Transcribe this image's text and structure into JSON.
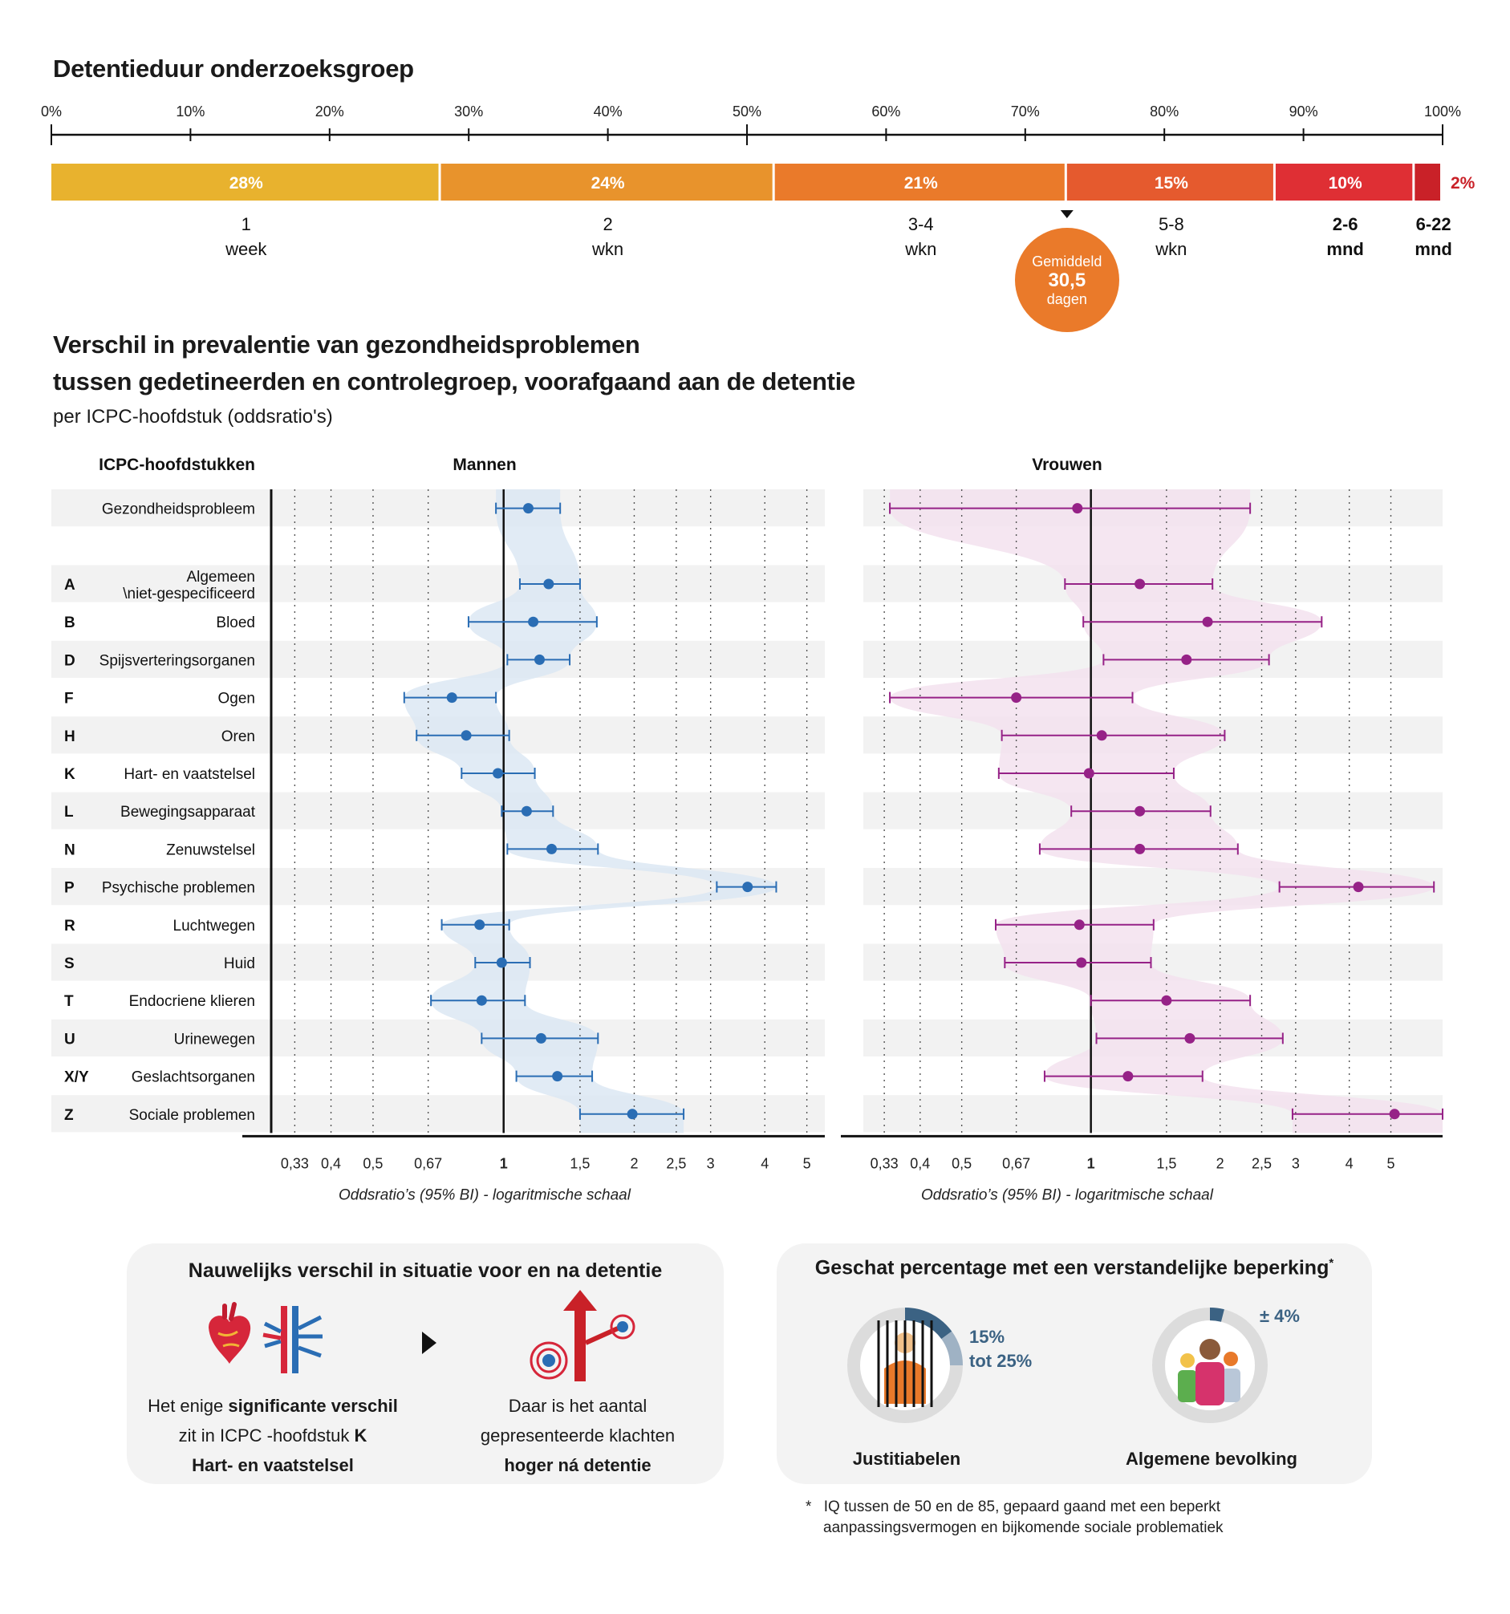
{
  "detention": {
    "title": "Detentieduur onderzoeksgroep",
    "scale_ticks": [
      "0%",
      "10%",
      "20%",
      "30%",
      "40%",
      "50%",
      "60%",
      "70%",
      "80%",
      "90%",
      "100%"
    ],
    "segments": [
      {
        "value": 28,
        "label": "28%",
        "line1": "1",
        "line2": "week",
        "color": "#e8b22e",
        "bold": false
      },
      {
        "value": 24,
        "label": "24%",
        "line1": "2",
        "line2": "wkn",
        "color": "#e8932c",
        "bold": false
      },
      {
        "value": 21,
        "label": "21%",
        "line1": "3-4",
        "line2": "wkn",
        "color": "#ea7a2a",
        "bold": false
      },
      {
        "value": 15,
        "label": "15%",
        "line1": "5-8",
        "line2": "wkn",
        "color": "#e55a2e",
        "bold": false
      },
      {
        "value": 10,
        "label": "10%",
        "line1": "2-6",
        "line2": "mnd",
        "color": "#df2f34",
        "bold": true
      },
      {
        "value": 2,
        "label": "2%",
        "line1": "6-22",
        "line2": "mnd",
        "color": "#c92128",
        "bold": true
      }
    ],
    "average": {
      "position_pct": 73,
      "line1": "Gemiddeld",
      "value": "30,5",
      "line3": "dagen"
    }
  },
  "forest": {
    "title_line1": "Verschil in prevalentie van gezondheidsproblemen",
    "title_line2": "tussen gedetineerden en controlegroep, voorafgaand aan de detentie",
    "subtitle": "per ICPC-hoofdstuk (oddsratio's)",
    "col_header": "ICPC-hoofdstukken"
  },
  "chart_data": [
    {
      "type": "forest",
      "name": "Mannen",
      "xlabel": "Oddsratio’s (95% BI) - logaritmische schaal",
      "scale": "log",
      "xlim": [
        0.3,
        5.5
      ],
      "ticks": [
        {
          "v": 0.33,
          "t": "0,33"
        },
        {
          "v": 0.4,
          "t": "0,4"
        },
        {
          "v": 0.5,
          "t": "0,5"
        },
        {
          "v": 0.67,
          "t": "0,67"
        },
        {
          "v": 1,
          "t": "1"
        },
        {
          "v": 1.5,
          "t": "1,5"
        },
        {
          "v": 2,
          "t": "2"
        },
        {
          "v": 2.5,
          "t": "2,5"
        },
        {
          "v": 3,
          "t": "3"
        },
        {
          "v": 4,
          "t": "4"
        },
        {
          "v": 5,
          "t": "5"
        }
      ],
      "color": "#2a6db4",
      "band_color": "#dce7f3",
      "rows": [
        {
          "code": "",
          "label": "Gezondheidsprobleem",
          "or": 1.14,
          "lo": 0.96,
          "hi": 1.35
        },
        {
          "code": "",
          "label": "",
          "or": null,
          "lo": null,
          "hi": null
        },
        {
          "code": "A",
          "label": "Algemeen \\niet-gespecificeerd",
          "or": 1.27,
          "lo": 1.09,
          "hi": 1.5
        },
        {
          "code": "B",
          "label": "Bloed",
          "or": 1.17,
          "lo": 0.83,
          "hi": 1.64
        },
        {
          "code": "D",
          "label": "Spijsverteringsorganen",
          "or": 1.21,
          "lo": 1.02,
          "hi": 1.42
        },
        {
          "code": "F",
          "label": "Ogen",
          "or": 0.76,
          "lo": 0.59,
          "hi": 0.96
        },
        {
          "code": "H",
          "label": "Oren",
          "or": 0.82,
          "lo": 0.63,
          "hi": 1.03
        },
        {
          "code": "K",
          "label": "Hart- en vaatstelsel",
          "or": 0.97,
          "lo": 0.8,
          "hi": 1.18
        },
        {
          "code": "L",
          "label": "Bewegingsapparaat",
          "or": 1.13,
          "lo": 0.99,
          "hi": 1.3
        },
        {
          "code": "N",
          "label": "Zenuwstelsel",
          "or": 1.29,
          "lo": 1.02,
          "hi": 1.65
        },
        {
          "code": "P",
          "label": "Psychische problemen",
          "or": 3.65,
          "lo": 3.1,
          "hi": 4.25
        },
        {
          "code": "R",
          "label": "Luchtwegen",
          "or": 0.88,
          "lo": 0.72,
          "hi": 1.03
        },
        {
          "code": "S",
          "label": "Huid",
          "or": 0.99,
          "lo": 0.86,
          "hi": 1.15
        },
        {
          "code": "T",
          "label": "Endocriene klieren",
          "or": 0.89,
          "lo": 0.68,
          "hi": 1.12
        },
        {
          "code": "U",
          "label": "Urinewegen",
          "or": 1.22,
          "lo": 0.89,
          "hi": 1.65
        },
        {
          "code": "X/Y",
          "label": "Geslachtsorganen",
          "or": 1.33,
          "lo": 1.07,
          "hi": 1.6
        },
        {
          "code": "Z",
          "label": "Sociale problemen",
          "or": 1.98,
          "lo": 1.5,
          "hi": 2.6
        }
      ]
    },
    {
      "type": "forest",
      "name": "Vrouwen",
      "xlabel": "Oddsratio’s (95% BI) - logaritmische schaal",
      "scale": "log",
      "xlim": [
        0.3,
        6.6
      ],
      "ticks": [
        {
          "v": 0.33,
          "t": "0,33"
        },
        {
          "v": 0.4,
          "t": "0,4"
        },
        {
          "v": 0.5,
          "t": "0,5"
        },
        {
          "v": 0.67,
          "t": "0,67"
        },
        {
          "v": 1,
          "t": "1"
        },
        {
          "v": 1.5,
          "t": "1,5"
        },
        {
          "v": 2,
          "t": "2"
        },
        {
          "v": 2.5,
          "t": "2,5"
        },
        {
          "v": 3,
          "t": "3"
        },
        {
          "v": 4,
          "t": "4"
        },
        {
          "v": 5,
          "t": "5"
        }
      ],
      "color": "#962287",
      "band_color": "#f3e2ef",
      "rows": [
        {
          "code": "",
          "label": "Gezondheidsprobleem",
          "or": 0.93,
          "lo": 0.34,
          "hi": 2.35
        },
        {
          "code": "",
          "label": "",
          "or": null,
          "lo": null,
          "hi": null
        },
        {
          "code": "A",
          "label": "Algemeen \\niet-gespecificeerd",
          "or": 1.3,
          "lo": 0.87,
          "hi": 1.92
        },
        {
          "code": "B",
          "label": "Bloed",
          "or": 1.87,
          "lo": 0.96,
          "hi": 3.45
        },
        {
          "code": "D",
          "label": "Spijsverteringsorganen",
          "or": 1.67,
          "lo": 1.07,
          "hi": 2.6
        },
        {
          "code": "F",
          "label": "Ogen",
          "or": 0.67,
          "lo": 0.34,
          "hi": 1.25
        },
        {
          "code": "H",
          "label": "Oren",
          "or": 1.06,
          "lo": 0.62,
          "hi": 2.05
        },
        {
          "code": "K",
          "label": "Hart- en vaatstelsel",
          "or": 0.99,
          "lo": 0.61,
          "hi": 1.56
        },
        {
          "code": "L",
          "label": "Bewegingsapparaat",
          "or": 1.3,
          "lo": 0.9,
          "hi": 1.9
        },
        {
          "code": "N",
          "label": "Zenuwstelsel",
          "or": 1.3,
          "lo": 0.76,
          "hi": 2.2
        },
        {
          "code": "P",
          "label": "Psychische problemen",
          "or": 4.2,
          "lo": 2.75,
          "hi": 6.3
        },
        {
          "code": "R",
          "label": "Luchtwegen",
          "or": 0.94,
          "lo": 0.6,
          "hi": 1.4
        },
        {
          "code": "S",
          "label": "Huid",
          "or": 0.95,
          "lo": 0.63,
          "hi": 1.38
        },
        {
          "code": "T",
          "label": "Endocriene klieren",
          "or": 1.5,
          "lo": 1.0,
          "hi": 2.35
        },
        {
          "code": "U",
          "label": "Urinewegen",
          "or": 1.7,
          "lo": 1.03,
          "hi": 2.8
        },
        {
          "code": "X/Y",
          "label": "Geslachtsorganen",
          "or": 1.22,
          "lo": 0.78,
          "hi": 1.82
        },
        {
          "code": "Z",
          "label": "Sociale problemen",
          "or": 5.1,
          "lo": 2.95,
          "hi": 6.6
        }
      ]
    }
  ],
  "panel_left": {
    "title": "Nauwelijks verschil in situatie voor en na detentie",
    "left_text": {
      "l1_a": "Het enige ",
      "l1_b": "significante verschil",
      "l2_a": "zit in ICPC -hoofdstuk ",
      "l2_b": "K",
      "l3": "Hart- en vaatstelsel"
    },
    "right_text": {
      "l1": "Daar is het aantal",
      "l2": "gepresenteerde klachten",
      "l3": "hoger ná detentie"
    },
    "icons": [
      "heart-icon",
      "blood-vessels-icon",
      "arrow-right-icon",
      "vessel-rising-icon"
    ]
  },
  "panel_right": {
    "title": "Geschat percentage met een verstandelijke beperking",
    "title_mark": "*",
    "groups": [
      {
        "name": "Justitiabelen",
        "l1": "15%",
        "l2": "tot 25%",
        "dark_pct": 15,
        "light_pct": 10,
        "icon": "prisoner-icon"
      },
      {
        "name": "Algemene bevolking",
        "l1": "± 4%",
        "l2": "",
        "dark_pct": 4,
        "light_pct": 0,
        "icon": "people-group-icon"
      }
    ],
    "footnote_mark": "*",
    "footnote_l1": "IQ tussen de 50 en de 85, gepaard gaand met een beperkt",
    "footnote_l2": "aanpassingsvermogen en bijkomende sociale problematiek"
  }
}
